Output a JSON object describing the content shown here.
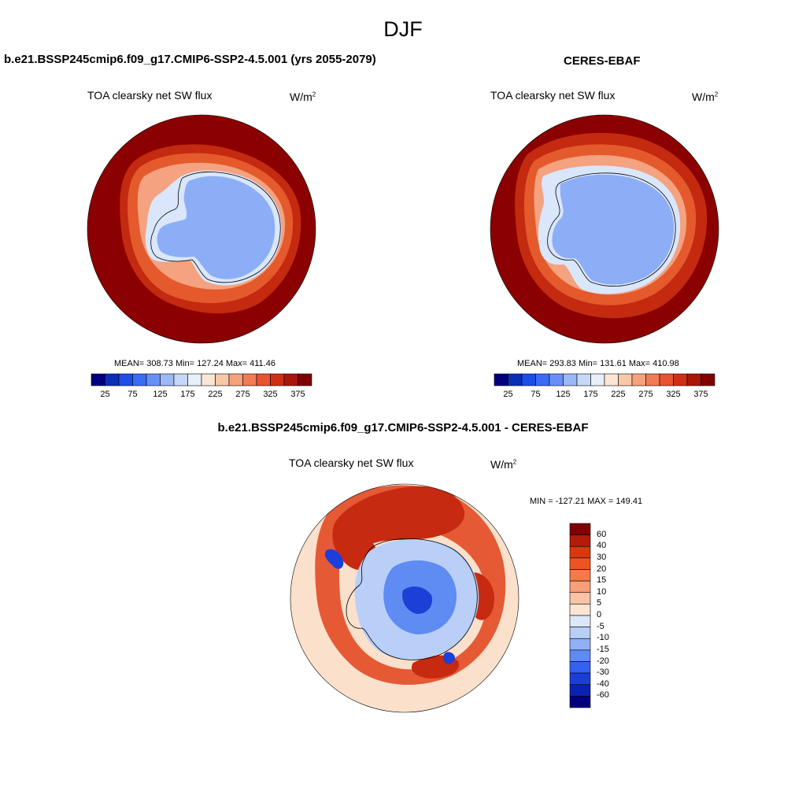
{
  "figure": {
    "title": "DJF"
  },
  "panels": [
    {
      "id": "model",
      "title": "b.e21.BSSP245cmip6.f09_g17.CMIP6-SSP2-4.5.001 (yrs 2055-2079)",
      "variable": "TOA clearsky net SW flux",
      "units_base": "W/m",
      "units_exp": "2",
      "stats": "MEAN= 308.73  Min= 127.24  Max= 411.46"
    },
    {
      "id": "obs",
      "title": "CERES-EBAF",
      "variable": "TOA clearsky net SW flux",
      "units_base": "W/m",
      "units_exp": "2",
      "stats": "MEAN= 293.83  Min= 131.61  Max= 410.98"
    },
    {
      "id": "diff",
      "title": "b.e21.BSSP245cmip6.f09_g17.CMIP6-SSP2-4.5.001 - CERES-EBAF",
      "variable": "TOA clearsky net SW flux",
      "units_base": "W/m",
      "units_exp": "2",
      "stats": "MIN = -127.21 MAX = 149.41"
    }
  ],
  "colorbar_abs": {
    "colors": [
      "#00007f",
      "#0b2fb4",
      "#1d4ee6",
      "#3a6cf5",
      "#6790f6",
      "#9cb8f6",
      "#c6d8f8",
      "#e7f0fa",
      "#fbe6d4",
      "#f8c7a6",
      "#f6a27c",
      "#f07c55",
      "#e85430",
      "#cf3014",
      "#a91708",
      "#7f0000"
    ],
    "tick_labels": [
      "25",
      "75",
      "125",
      "175",
      "225",
      "275",
      "325",
      "375"
    ]
  },
  "colorbar_diff": {
    "colors": [
      "#7f0000",
      "#b31b0b",
      "#d9380f",
      "#ee5422",
      "#f57a46",
      "#f79f78",
      "#f9c3a4",
      "#fbe4d2",
      "#dce8fa",
      "#b8cff6",
      "#8fb1f6",
      "#5e8af4",
      "#3461ef",
      "#1a3fd9",
      "#0a22b0",
      "#00007f"
    ],
    "tick_labels": [
      "60",
      "40",
      "30",
      "20",
      "15",
      "10",
      "5",
      "0",
      "-5",
      "-10",
      "-15",
      "-20",
      "-30",
      "-40",
      "-60"
    ]
  },
  "map_colors": {
    "abs_ocean": "#8b0000",
    "abs_ring_1": "#c32a10",
    "abs_ring_2": "#e45a2c",
    "abs_ring_3": "#f4a27f",
    "abs_coast": "#d9e6fb",
    "abs_ice": "#8caef6",
    "diff_background": "#fbe0cb",
    "diff_red_strong": "#c62a10",
    "diff_red": "#e55a34",
    "diff_blue_light": "#b9cff7",
    "diff_blue": "#5f8cf2",
    "diff_blue_strong": "#1c3fd8"
  }
}
